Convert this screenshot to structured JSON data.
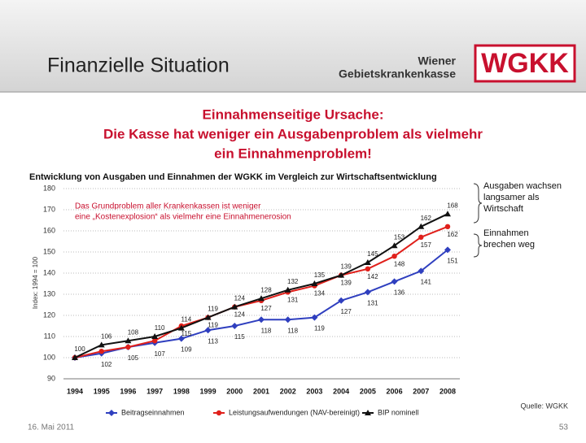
{
  "header": {
    "title": "Finanzielle Situation",
    "logo_line1": "Wiener",
    "logo_line2": "Gebietskrankenkasse",
    "logo": "WGKK"
  },
  "headline": [
    "Einnahmenseitige Ursache:",
    "Die Kasse hat weniger ein Ausgabenproblem als vielmehr",
    "ein Einnahmenproblem!"
  ],
  "side_notes": [
    [
      "Ausgaben wachsen",
      "langsamer als",
      "Wirtschaft"
    ],
    [
      "Einnahmen",
      "brechen weg"
    ]
  ],
  "footer": {
    "source": "Quelle: WGKK",
    "date": "16. Mai 2011",
    "page": "53"
  },
  "chart_data": {
    "type": "line",
    "title": "Entwicklung von Ausgaben und Einnahmen der WGKK im Vergleich zur Wirtschaftsentwicklung",
    "annotation": [
      "Das Grundproblem aller Krankenkassen ist weniger",
      "eine „Kostenexplosion“ als vielmehr eine Einnahmenerosion"
    ],
    "y_label": "Index: 1994 = 100",
    "categories": [
      "1994",
      "1995",
      "1996",
      "1997",
      "1998",
      "1999",
      "2000",
      "2001",
      "2002",
      "2003",
      "2004",
      "2005",
      "2006",
      "2007",
      "2008"
    ],
    "series": [
      {
        "name": "Beitragseinnahmen",
        "color": "#2f3fbf",
        "marker": "diamond",
        "values": [
          100,
          102,
          105,
          107,
          109,
          113,
          115,
          118,
          118,
          119,
          127,
          131,
          136,
          141,
          151
        ],
        "value_labels": [
          null,
          "102",
          "105",
          "107",
          "109",
          "113",
          "115",
          "118",
          "118",
          "119",
          "127",
          "131",
          "136",
          "141",
          "151"
        ]
      },
      {
        "name": "Leistungsaufwendungen (NAV-bereinigt)",
        "color": "#e0201b",
        "marker": "circle",
        "values": [
          100,
          103,
          105,
          108,
          115,
          119,
          124,
          127,
          131,
          134,
          139,
          142,
          148,
          157,
          162
        ],
        "value_labels": [
          null,
          null,
          null,
          null,
          "115",
          "119",
          "124",
          "127",
          "131",
          "134",
          "139",
          "142",
          "148",
          "157",
          "162"
        ]
      },
      {
        "name": "BIP nominell",
        "color": "#111111",
        "marker": "triangle",
        "values": [
          100,
          106,
          108,
          110,
          114,
          119,
          124,
          128,
          132,
          135,
          139,
          145,
          153,
          162,
          168
        ],
        "value_labels": [
          "100",
          "106",
          "108",
          "110",
          "114",
          "119",
          "124",
          "128",
          "132",
          "135",
          "139",
          "145",
          "153",
          "162",
          "168"
        ]
      }
    ],
    "ylim": [
      90,
      180
    ],
    "yticks": [
      90,
      100,
      110,
      120,
      130,
      140,
      150,
      160,
      170,
      180
    ],
    "grid": true
  }
}
